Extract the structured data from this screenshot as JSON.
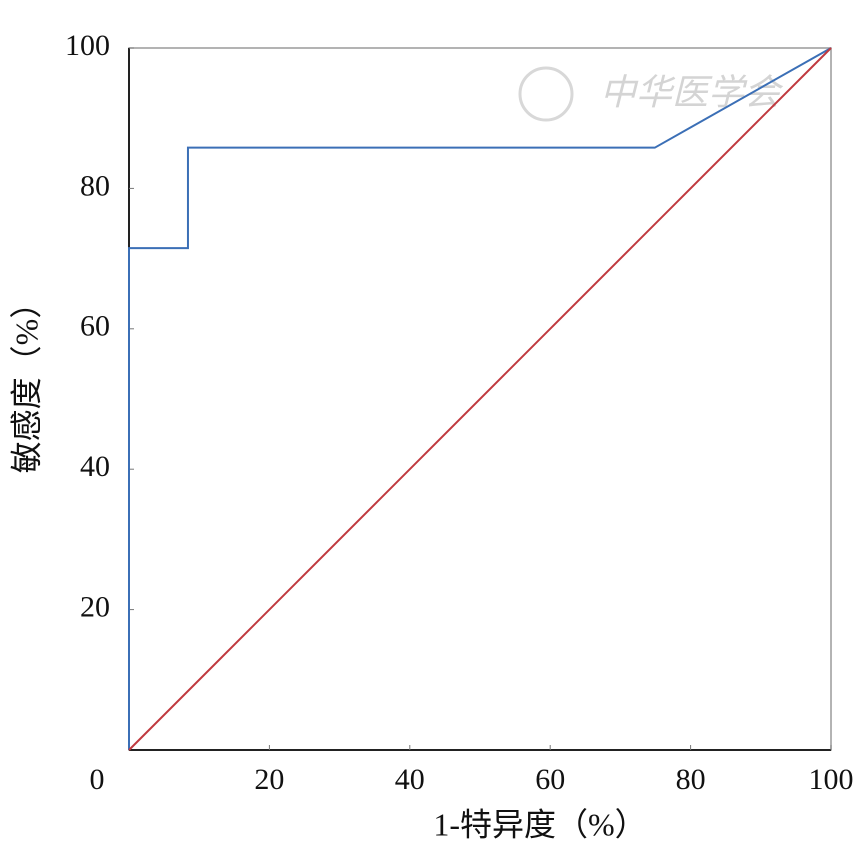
{
  "chart_data": {
    "type": "line",
    "xlabel": "1-特异度（%）",
    "ylabel": "敏感度（%）",
    "watermark": "中华医学会",
    "series": [
      {
        "color": "#3b6fb6",
        "x": [
          0,
          0,
          8.4,
          8.4,
          74.9,
          100
        ],
        "values": [
          0,
          71.5,
          71.5,
          85.8,
          85.8,
          100
        ]
      },
      {
        "color": "#c0393f",
        "x": [
          0,
          100
        ],
        "values": [
          0,
          100
        ]
      }
    ],
    "xlim": [
      0,
      100
    ],
    "ylim": [
      0,
      100
    ],
    "xticks": [
      0,
      20,
      40,
      60,
      80,
      100
    ],
    "yticks": [
      20,
      40,
      60,
      80,
      100
    ]
  }
}
